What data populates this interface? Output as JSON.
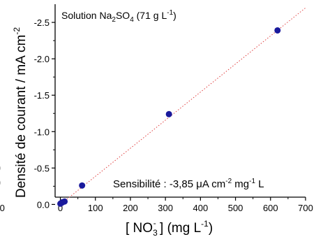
{
  "chart_data": {
    "type": "scatter",
    "annotation_top": {
      "prefix": "Solution Na",
      "sub1": "2",
      "mid": "SO",
      "sub2": "4",
      "suffix": " (71 g L",
      "sup": "-1",
      "end": ")"
    },
    "annotation_bottom": {
      "prefix": "Sensibilité : -3,85 ",
      "mu": "μ",
      "unit1": "A cm",
      "sup1": "-2",
      "unit2": " mg",
      "sup2": "-1",
      "end": " L"
    },
    "xlabel": {
      "prefix": "[ NO",
      "sub": "3",
      "sup": "-",
      "suffix": " ]  (mg L",
      "sup2": "-1",
      "end": ")"
    },
    "ylabel": {
      "prefix": "Densité de courant / mA cm",
      "sup": "-2"
    },
    "left_edge_fragments": [
      "0",
      "0",
      ".0"
    ],
    "xlim": [
      -15,
      700
    ],
    "ylim": [
      -0.1,
      -2.75
    ],
    "x_ticks": [
      "0",
      "100",
      "200",
      "300",
      "400",
      "500",
      "600",
      "700"
    ],
    "y_ticks": [
      "0.0",
      "-0.5",
      "-1.0",
      "-1.5",
      "-2.0",
      "-2.5"
    ],
    "x_tick_values": [
      0,
      100,
      200,
      300,
      400,
      500,
      600,
      700
    ],
    "y_tick_values": [
      0,
      -0.5,
      -1.0,
      -1.5,
      -2.0,
      -2.5
    ],
    "points": [
      {
        "x": 0,
        "y": -0.01
      },
      {
        "x": 3,
        "y": -0.02
      },
      {
        "x": 6,
        "y": -0.03
      },
      {
        "x": 12,
        "y": -0.04
      },
      {
        "x": 62,
        "y": -0.26
      },
      {
        "x": 310,
        "y": -1.24
      },
      {
        "x": 620,
        "y": -2.39
      }
    ],
    "fit_line": {
      "x": [
        0,
        700
      ],
      "y": [
        0,
        -2.7
      ]
    },
    "colors": {
      "points": "#1a1a9c",
      "fit": "#e04040",
      "axes": "#000000"
    }
  }
}
